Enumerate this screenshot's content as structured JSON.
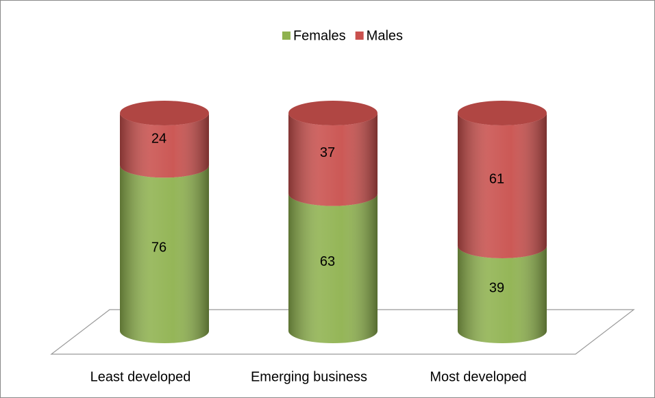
{
  "chart_data": {
    "type": "stacked-cylinder",
    "categories": [
      "Least developed",
      "Emerging business",
      "Most developed"
    ],
    "series": [
      {
        "name": "Females",
        "color": "#8fb24f",
        "values": [
          76,
          63,
          39
        ]
      },
      {
        "name": "Males",
        "color": "#c9504d",
        "values": [
          24,
          37,
          61
        ]
      }
    ],
    "ylim": [
      0,
      100
    ],
    "legend": "top"
  }
}
